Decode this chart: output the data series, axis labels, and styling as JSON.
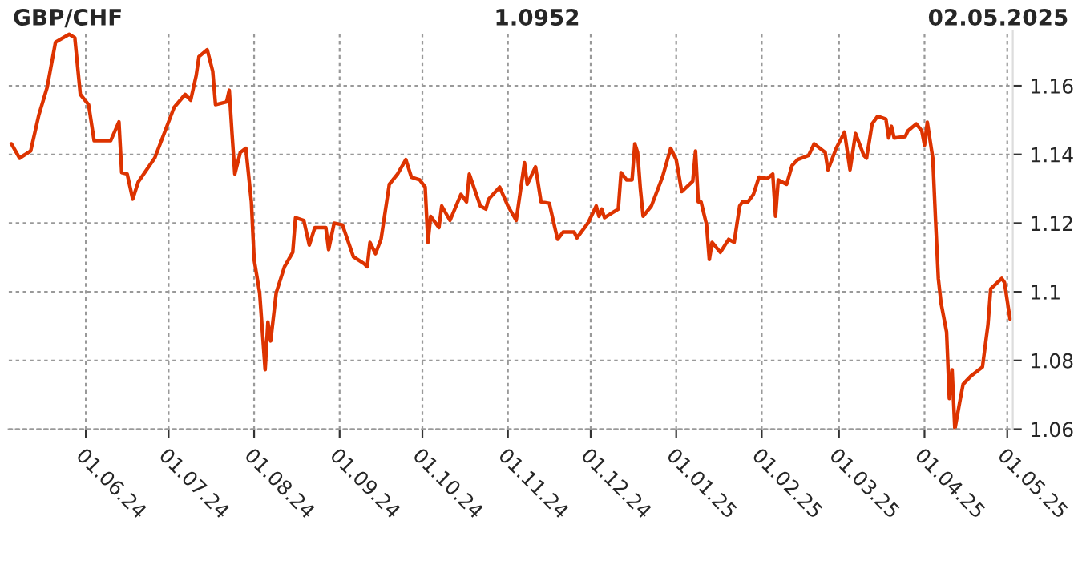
{
  "chart_data": {
    "type": "line",
    "title": "GBP/CHF",
    "annotations": [
      "1.0952",
      "02.05.2025"
    ],
    "x": [
      "2024-05-05",
      "2024-05-08",
      "2024-05-12",
      "2024-05-15",
      "2024-05-18",
      "2024-05-21",
      "2024-05-26",
      "2024-05-28",
      "2024-05-30",
      "2024-06-02",
      "2024-06-04",
      "2024-06-07",
      "2024-06-10",
      "2024-06-13",
      "2024-06-14",
      "2024-06-16",
      "2024-06-18",
      "2024-06-20",
      "2024-06-26",
      "2024-06-30",
      "2024-07-03",
      "2024-07-07",
      "2024-07-09",
      "2024-07-11",
      "2024-07-12",
      "2024-07-15",
      "2024-07-17",
      "2024-07-18",
      "2024-07-22",
      "2024-07-23",
      "2024-07-24",
      "2024-07-25",
      "2024-07-27",
      "2024-07-29",
      "2024-07-31",
      "2024-08-01",
      "2024-08-03",
      "2024-08-05",
      "2024-08-06",
      "2024-08-07",
      "2024-08-09",
      "2024-08-12",
      "2024-08-15",
      "2024-08-16",
      "2024-08-19",
      "2024-08-21",
      "2024-08-23",
      "2024-08-27",
      "2024-08-28",
      "2024-08-30",
      "2024-09-02",
      "2024-09-06",
      "2024-09-10",
      "2024-09-11",
      "2024-09-12",
      "2024-09-14",
      "2024-09-16",
      "2024-09-19",
      "2024-09-22",
      "2024-09-25",
      "2024-09-27",
      "2024-09-30",
      "2024-10-02",
      "2024-10-03",
      "2024-10-04",
      "2024-10-07",
      "2024-10-08",
      "2024-10-11",
      "2024-10-15",
      "2024-10-17",
      "2024-10-18",
      "2024-10-22",
      "2024-10-24",
      "2024-10-25",
      "2024-10-29",
      "2024-11-01",
      "2024-11-04",
      "2024-11-07",
      "2024-11-08",
      "2024-11-11",
      "2024-11-13",
      "2024-11-16",
      "2024-11-18",
      "2024-11-19",
      "2024-11-21",
      "2024-11-25",
      "2024-11-26",
      "2024-11-30",
      "2024-12-03",
      "2024-12-04",
      "2024-12-05",
      "2024-12-06",
      "2024-12-11",
      "2024-12-12",
      "2024-12-14",
      "2024-12-16",
      "2024-12-17",
      "2024-12-18",
      "2024-12-19",
      "2024-12-20",
      "2024-12-23",
      "2024-12-27",
      "2024-12-30",
      "2025-01-01",
      "2025-01-03",
      "2025-01-07",
      "2025-01-08",
      "2025-01-09",
      "2025-01-10",
      "2025-01-12",
      "2025-01-13",
      "2025-01-14",
      "2025-01-17",
      "2025-01-20",
      "2025-01-22",
      "2025-01-24",
      "2025-01-25",
      "2025-01-27",
      "2025-01-29",
      "2025-01-31",
      "2025-02-03",
      "2025-02-05",
      "2025-02-06",
      "2025-02-07",
      "2025-02-10",
      "2025-02-12",
      "2025-02-14",
      "2025-02-18",
      "2025-02-20",
      "2025-02-24",
      "2025-02-25",
      "2025-02-28",
      "2025-03-03",
      "2025-03-05",
      "2025-03-07",
      "2025-03-10",
      "2025-03-11",
      "2025-03-13",
      "2025-03-15",
      "2025-03-18",
      "2025-03-19",
      "2025-03-20",
      "2025-03-21",
      "2025-03-25",
      "2025-03-26",
      "2025-03-29",
      "2025-03-31",
      "2025-04-01",
      "2025-04-02",
      "2025-04-04",
      "2025-04-05",
      "2025-04-06",
      "2025-04-07",
      "2025-04-09",
      "2025-04-10",
      "2025-04-11",
      "2025-04-12",
      "2025-04-14",
      "2025-04-15",
      "2025-04-18",
      "2025-04-22",
      "2025-04-24",
      "2025-04-25",
      "2025-04-29",
      "2025-04-30",
      "2025-05-02"
    ],
    "values": [
      1.1431,
      1.1389,
      1.141,
      1.1516,
      1.1596,
      1.1727,
      1.175,
      1.174,
      1.1575,
      1.1545,
      1.144,
      1.144,
      1.144,
      1.1495,
      1.1347,
      1.1343,
      1.127,
      1.132,
      1.139,
      1.1474,
      1.1537,
      1.1575,
      1.1558,
      1.163,
      1.1685,
      1.1705,
      1.1642,
      1.1545,
      1.1553,
      1.1587,
      1.146,
      1.1343,
      1.1406,
      1.1418,
      1.1262,
      1.1094,
      1.0997,
      1.0773,
      1.0912,
      1.0857,
      1.0997,
      1.1073,
      1.1115,
      1.1216,
      1.1208,
      1.1136,
      1.1187,
      1.1187,
      1.1123,
      1.12,
      1.1195,
      1.1102,
      1.1081,
      1.1073,
      1.1144,
      1.1111,
      1.1153,
      1.1313,
      1.1343,
      1.1385,
      1.1334,
      1.1326,
      1.1305,
      1.1144,
      1.122,
      1.1187,
      1.125,
      1.1208,
      1.1284,
      1.1262,
      1.1343,
      1.125,
      1.1241,
      1.127,
      1.1305,
      1.125,
      1.1208,
      1.1376,
      1.1313,
      1.1364,
      1.1262,
      1.1258,
      1.1187,
      1.1153,
      1.1174,
      1.1174,
      1.1157,
      1.12,
      1.125,
      1.122,
      1.1241,
      1.1216,
      1.1241,
      1.1347,
      1.1326,
      1.1326,
      1.1431,
      1.1406,
      1.13,
      1.122,
      1.125,
      1.1334,
      1.1418,
      1.1385,
      1.1292,
      1.1322,
      1.141,
      1.1262,
      1.1262,
      1.1195,
      1.1094,
      1.1144,
      1.1115,
      1.1153,
      1.1144,
      1.125,
      1.1262,
      1.1262,
      1.1284,
      1.1334,
      1.133,
      1.1343,
      1.122,
      1.1326,
      1.1313,
      1.1368,
      1.1385,
      1.1397,
      1.1431,
      1.1406,
      1.1355,
      1.1418,
      1.1465,
      1.1355,
      1.1461,
      1.1397,
      1.1389,
      1.1489,
      1.1511,
      1.1503,
      1.1448,
      1.1482,
      1.1448,
      1.1452,
      1.1469,
      1.1489,
      1.1469,
      1.1427,
      1.1494,
      1.1389,
      1.1208,
      1.1039,
      1.0967,
      1.0883,
      1.0689,
      1.0773,
      1.06,
      1.0689,
      1.0731,
      1.0756,
      1.0781,
      1.0904,
      1.1009,
      1.1039,
      1.1027,
      1.0921
    ],
    "color": "#dd3300",
    "line_style": "solid",
    "marker": "none",
    "grid": true,
    "xlim": [
      "2024-05-04",
      "2025-05-03"
    ],
    "xticks": [
      {
        "value": "2024-06-01",
        "label": "01.06.24"
      },
      {
        "value": "2024-07-01",
        "label": "01.07.24"
      },
      {
        "value": "2024-08-01",
        "label": "01.08.24"
      },
      {
        "value": "2024-09-01",
        "label": "01.09.24"
      },
      {
        "value": "2024-10-01",
        "label": "01.10.24"
      },
      {
        "value": "2024-11-01",
        "label": "01.11.24"
      },
      {
        "value": "2024-12-01",
        "label": "01.12.24"
      },
      {
        "value": "2025-01-01",
        "label": "01.01.25"
      },
      {
        "value": "2025-02-01",
        "label": "01.02.25"
      },
      {
        "value": "2025-03-01",
        "label": "01.03.25"
      },
      {
        "value": "2025-04-01",
        "label": "01.04.25"
      },
      {
        "value": "2025-05-01",
        "label": "01.05.25"
      }
    ],
    "ylim": [
      1.06,
      1.176
    ],
    "yticks": [
      1.06,
      1.08,
      1.1,
      1.12,
      1.14,
      1.16
    ]
  }
}
